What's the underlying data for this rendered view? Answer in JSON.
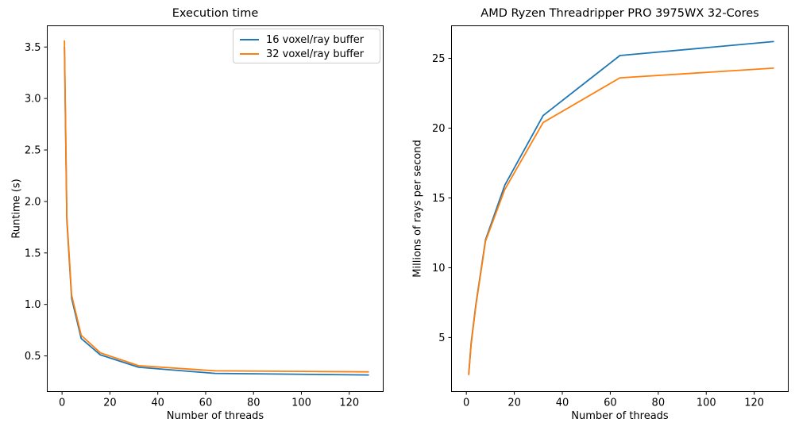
{
  "figure_title": "",
  "chart_data": [
    {
      "type": "line",
      "title": "Execution time",
      "xlabel": "Number of threads",
      "ylabel": "Runtime (s)",
      "x": [
        1,
        2,
        4,
        8,
        16,
        32,
        64,
        128
      ],
      "series": [
        {
          "name": "16 voxel/ray buffer",
          "color": "#1f77b4",
          "values": [
            3.5,
            1.82,
            1.06,
            0.67,
            0.51,
            0.39,
            0.33,
            0.315
          ]
        },
        {
          "name": "32 voxel/ray buffer",
          "color": "#ff7f0e",
          "values": [
            3.56,
            1.85,
            1.09,
            0.7,
            0.53,
            0.405,
            0.355,
            0.345
          ]
        }
      ],
      "xlim": [
        -6.35,
        134.35
      ],
      "ylim": [
        0.15,
        3.71
      ],
      "xticks": [
        0,
        20,
        40,
        60,
        80,
        100,
        120
      ],
      "xtick_labels": [
        "0",
        "20",
        "40",
        "60",
        "80",
        "100",
        "120"
      ],
      "yticks": [
        0.5,
        1.0,
        1.5,
        2.0,
        2.5,
        3.0,
        3.5
      ],
      "ytick_labels": [
        "0.5",
        "1.0",
        "1.5",
        "2.0",
        "2.5",
        "3.0",
        "3.5"
      ],
      "grid": false,
      "legend": {
        "position": "upper right",
        "entries": [
          "16 voxel/ray buffer",
          "32 voxel/ray buffer"
        ]
      }
    },
    {
      "type": "line",
      "title": "AMD Ryzen Threadripper PRO 3975WX 32-Cores",
      "xlabel": "Number of threads",
      "ylabel": "Millions of rays per second",
      "x": [
        1,
        2,
        4,
        8,
        16,
        32,
        64,
        128
      ],
      "series": [
        {
          "name": "16 voxel/ray buffer",
          "color": "#1f77b4",
          "values": [
            2.4,
            4.6,
            7.4,
            12.0,
            15.9,
            20.9,
            25.2,
            26.2
          ]
        },
        {
          "name": "32 voxel/ray buffer",
          "color": "#ff7f0e",
          "values": [
            2.35,
            4.5,
            7.3,
            11.9,
            15.6,
            20.4,
            23.6,
            24.3
          ]
        }
      ],
      "xlim": [
        -6.35,
        134.35
      ],
      "ylim": [
        1.1,
        27.36
      ],
      "xticks": [
        0,
        20,
        40,
        60,
        80,
        100,
        120
      ],
      "xtick_labels": [
        "0",
        "20",
        "40",
        "60",
        "80",
        "100",
        "120"
      ],
      "yticks": [
        5,
        10,
        15,
        20,
        25
      ],
      "ytick_labels": [
        "5",
        "10",
        "15",
        "20",
        "25"
      ],
      "grid": false,
      "legend": null
    }
  ],
  "style": {
    "axis_color": "#000000",
    "background": "#ffffff",
    "legend_border": "#cccccc"
  }
}
